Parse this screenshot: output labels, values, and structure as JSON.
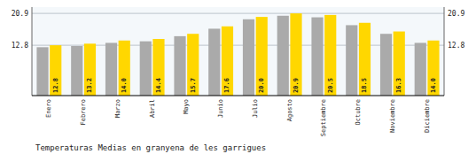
{
  "chart_data": {
    "type": "bar",
    "title": "Temperaturas Medias en granyena de les garrigues",
    "categories": [
      "Enero",
      "Febrero",
      "Marzo",
      "Abril",
      "Mayo",
      "Junio",
      "Julio",
      "Agosto",
      "Septiembre",
      "Octubre",
      "Noviembre",
      "Diciembre"
    ],
    "series": [
      {
        "color": "#AAAAAA",
        "values": [
          12.3,
          12.6,
          13.4,
          13.8,
          15.1,
          17.0,
          19.4,
          20.3,
          19.9,
          17.9,
          15.7,
          13.4
        ]
      },
      {
        "color": "#FFD700",
        "values": [
          12.8,
          13.2,
          14.0,
          14.4,
          15.7,
          17.6,
          20.0,
          20.9,
          20.5,
          18.5,
          16.3,
          14.0
        ],
        "value_labels": [
          "12.8",
          "13.2",
          "14.0",
          "14.4",
          "15.7",
          "17.6",
          "20.0",
          "20.9",
          "20.5",
          "18.5",
          "16.3",
          "14.0"
        ],
        "data_labels": true
      }
    ],
    "ylim": [
      0,
      22.5
    ],
    "yticks": [
      12.8,
      20.9
    ],
    "y2lim": [
      0,
      22.5
    ],
    "y2ticks": [
      12.8,
      20.9
    ],
    "grid": true
  }
}
